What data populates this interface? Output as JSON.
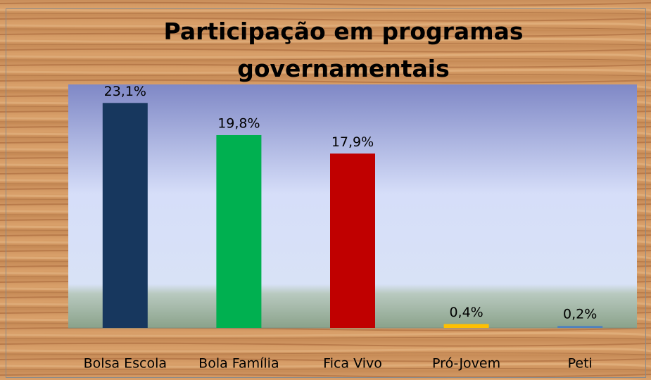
{
  "chart_data": {
    "type": "bar",
    "title": "Participação em programas governamentais",
    "categories": [
      "Bolsa Escola",
      "Bola Família",
      "Fica Vivo",
      "Pró-Jovem",
      "Peti"
    ],
    "values": [
      23.1,
      19.8,
      17.9,
      0.4,
      0.2
    ],
    "value_labels": [
      "23,1%",
      "19,8%",
      "17,9%",
      "0,4%",
      "0,2%"
    ],
    "colors": [
      "#17375e",
      "#00b050",
      "#c00000",
      "#ffc000",
      "#4f81bd"
    ],
    "ylim": [
      0,
      25
    ]
  }
}
